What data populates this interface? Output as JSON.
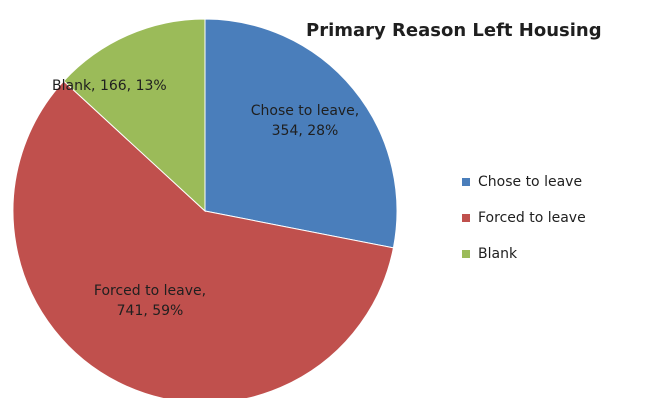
{
  "chart_data": {
    "type": "pie",
    "title": "Primary Reason Left Housing",
    "legend_position": "right",
    "slices": [
      {
        "label": "Chose to leave",
        "value": 354,
        "percent": "28%",
        "color": "#4a7ebb",
        "data_label_line1": "Chose to leave,",
        "data_label_line2": "354, 28%"
      },
      {
        "label": "Forced to leave",
        "value": 741,
        "percent": "59%",
        "color": "#c0504d",
        "data_label_line1": "Forced to leave,",
        "data_label_line2": "741, 59%"
      },
      {
        "label": "Blank",
        "value": 166,
        "percent": "13%",
        "color": "#9bbb59",
        "data_label_line1": "Blank, 166, 13%",
        "data_label_line2": ""
      }
    ]
  }
}
